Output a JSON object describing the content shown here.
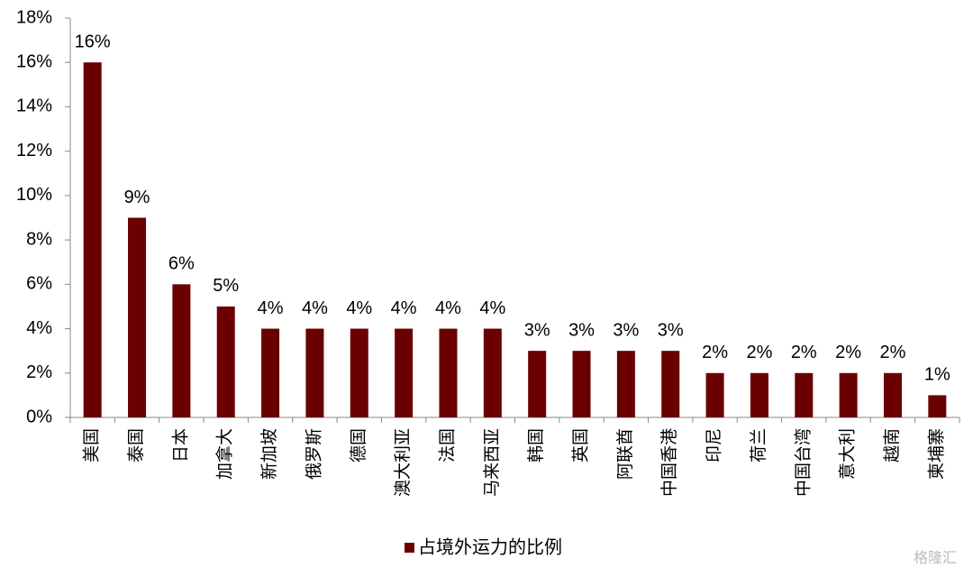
{
  "chart_data": {
    "type": "bar",
    "categories": [
      "美国",
      "泰国",
      "日本",
      "加拿大",
      "新加坡",
      "俄罗斯",
      "德国",
      "澳大利亚",
      "法国",
      "马来西亚",
      "韩国",
      "英国",
      "阿联酋",
      "中国香港",
      "印尼",
      "荷兰",
      "中国台湾",
      "意大利",
      "越南",
      "柬埔寨"
    ],
    "series": [
      {
        "name": "占境外运力的比例",
        "color": "#6b0000",
        "values": [
          16,
          9,
          6,
          5,
          4,
          4,
          4,
          4,
          4,
          4,
          3,
          3,
          3,
          3,
          2,
          2,
          2,
          2,
          2,
          1
        ],
        "value_labels": [
          "16%",
          "9%",
          "6%",
          "5%",
          "4%",
          "4%",
          "4%",
          "4%",
          "4%",
          "4%",
          "3%",
          "3%",
          "3%",
          "3%",
          "2%",
          "2%",
          "2%",
          "2%",
          "2%",
          "1%"
        ]
      }
    ],
    "ylim": [
      0,
      18
    ],
    "yticks": [
      {
        "value": 0,
        "label": "0%"
      },
      {
        "value": 2,
        "label": "2%"
      },
      {
        "value": 4,
        "label": "4%"
      },
      {
        "value": 6,
        "label": "6%"
      },
      {
        "value": 8,
        "label": "8%"
      },
      {
        "value": 10,
        "label": "10%"
      },
      {
        "value": 12,
        "label": "12%"
      },
      {
        "value": 14,
        "label": "14%"
      },
      {
        "value": 16,
        "label": "16%"
      },
      {
        "value": 18,
        "label": "18%"
      }
    ],
    "grid": false,
    "legend": "bottom",
    "watermark": "格隆汇"
  }
}
